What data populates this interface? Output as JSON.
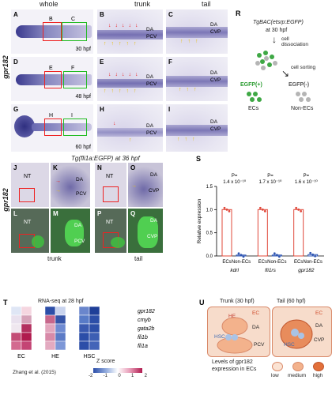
{
  "headers": {
    "whole": "whole",
    "trunk": "trunk",
    "tail": "tail"
  },
  "gene_label": "gpr182",
  "panelA": {
    "letter": "A",
    "time": "30 hpf",
    "boxes": [
      "B",
      "C"
    ]
  },
  "panelD": {
    "letter": "D",
    "time": "48 hpf",
    "boxes": [
      "E",
      "F"
    ]
  },
  "panelG": {
    "letter": "G",
    "time": "60 hpf",
    "boxes": [
      "H",
      "I"
    ]
  },
  "trunk_labels": {
    "da": "DA",
    "pcv": "PCV"
  },
  "tail_labels": {
    "da": "DA",
    "cvp": "CVP"
  },
  "panelR": {
    "letter": "R",
    "line": "TgBAC(etsrp:EGFP)",
    "time": "at 30 hpf",
    "step1": "cell dissociation",
    "step2": "cell sorting",
    "pos": "EGFP(+)",
    "neg": "EGFP(-)",
    "pos_cells": "ECs",
    "neg_cells": "Non-ECs"
  },
  "fli_title": "Tg(fli1a:EGFP) at 36 hpf",
  "nt": "NT",
  "bottom_trunk": "trunk",
  "bottom_tail": "tail",
  "chart_data": {
    "type": "bar",
    "letter": "S",
    "ylabel": "Relative expression",
    "ylim": [
      0,
      1.5
    ],
    "yticks": [
      "0.0",
      "0.5",
      "1.0",
      "1.5"
    ],
    "groups": [
      {
        "gene": "kdrl",
        "pvalue_label": "P=",
        "pvalue": "1.4 x 10⁻¹⁰",
        "categories": [
          "ECs",
          "Non-ECs"
        ],
        "values": [
          1.0,
          0.02
        ]
      },
      {
        "gene": "fli1rs",
        "pvalue_label": "P=",
        "pvalue": "1.7 x 10⁻¹⁰",
        "categories": [
          "ECs",
          "Non-ECs"
        ],
        "values": [
          1.0,
          0.02
        ]
      },
      {
        "gene": "gpr182",
        "pvalue_label": "P=",
        "pvalue": "1.6 x 10⁻¹⁰",
        "categories": [
          "ECs",
          "Non-ECs"
        ],
        "values": [
          1.0,
          0.03
        ]
      }
    ]
  },
  "panelT": {
    "letter": "T",
    "title": "RNA-seq at 28 hpf",
    "genes": [
      "gpr182",
      "cmyb",
      "gata2b",
      "fli1b",
      "fli1a"
    ],
    "cols": [
      "EC",
      "HE",
      "HSC"
    ],
    "legend_title": "Z score",
    "legend_ticks": [
      "-2",
      "-1",
      "0",
      "1",
      "2"
    ],
    "source": "Zhang et al. (2015)"
  },
  "panelU": {
    "letter": "U",
    "trunk_title": "Trunk (30 hpf)",
    "tail_title": "Tail (60 hpf)",
    "ec": "EC",
    "he": "HE",
    "hsc": "HSC",
    "da": "DA",
    "pcv": "PCV",
    "cvp": "CVP",
    "legend_title": "Levels of gpr182",
    "legend_sub": "expression in ECs",
    "levels": [
      "low",
      "medium",
      "high"
    ]
  }
}
